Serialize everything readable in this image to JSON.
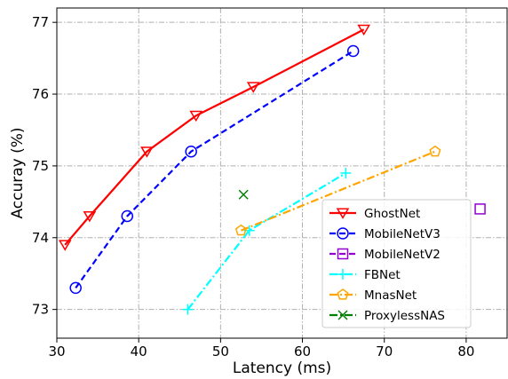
{
  "chart_data": {
    "type": "line",
    "title": "",
    "xlabel": "Latency (ms)",
    "ylabel": "Accuray (%)",
    "xlim": [
      30,
      85
    ],
    "ylim": [
      72.6,
      77.2
    ],
    "xticks": [
      30,
      40,
      50,
      60,
      70,
      80
    ],
    "yticks": [
      73,
      74,
      75,
      76,
      77
    ],
    "grid": true,
    "legend_position": "lower-right",
    "series": [
      {
        "name": "GhostNet",
        "color": "#ff0000",
        "line": "solid",
        "marker": "triangle-down",
        "points": [
          [
            31,
            73.9
          ],
          [
            34,
            74.3
          ],
          [
            41,
            75.2
          ],
          [
            47,
            75.7
          ],
          [
            54,
            76.1
          ],
          [
            67.5,
            76.9
          ]
        ]
      },
      {
        "name": "MobileNetV3",
        "color": "#0000ff",
        "line": "dashed",
        "marker": "circle",
        "points": [
          [
            32.3,
            73.3
          ],
          [
            38.6,
            74.3
          ],
          [
            46.4,
            75.2
          ],
          [
            66.2,
            76.6
          ]
        ]
      },
      {
        "name": "MobileNetV2",
        "color": "#9400d3",
        "line": "dashed",
        "marker": "square",
        "points": [
          [
            81.7,
            74.4
          ]
        ]
      },
      {
        "name": "FBNet",
        "color": "#00ffff",
        "line": "dashdot",
        "marker": "plus",
        "points": [
          [
            46,
            73.0
          ],
          [
            53.5,
            74.1
          ],
          [
            65.3,
            74.9
          ]
        ]
      },
      {
        "name": "MnasNet",
        "color": "#ffa500",
        "line": "dashdot",
        "marker": "pentagon",
        "points": [
          [
            52.5,
            74.1
          ],
          [
            76.2,
            75.2
          ]
        ]
      },
      {
        "name": "ProxylessNAS",
        "color": "#008000",
        "line": "dashdot",
        "marker": "x",
        "points": [
          [
            52.8,
            74.6
          ]
        ]
      }
    ]
  }
}
